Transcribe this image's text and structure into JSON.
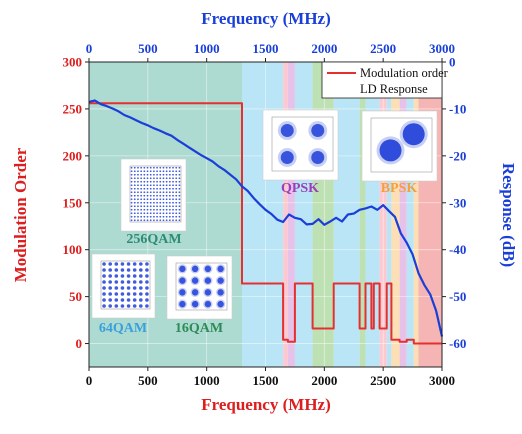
{
  "chart_data": {
    "type": "line",
    "top_axis_title": "Frequency (MHz)",
    "xlabel": "Frequency (MHz)",
    "ylabel_left": "Modulation Order",
    "ylabel_right": "Response (dB)",
    "xlim": [
      0,
      3000
    ],
    "ylim_left": [
      -25,
      300
    ],
    "ylim_right": [
      -65,
      0
    ],
    "x_ticks": [
      "0",
      "500",
      "1000",
      "1500",
      "2000",
      "2500",
      "3000"
    ],
    "x_tick_values": [
      0,
      500,
      1000,
      1500,
      2000,
      2500,
      3000
    ],
    "left_ticks": [
      "0",
      "50",
      "100",
      "150",
      "200",
      "250",
      "300"
    ],
    "left_tick_values": [
      0,
      50,
      100,
      150,
      200,
      250,
      300
    ],
    "right_ticks": [
      "0",
      "-10",
      "-20",
      "-30",
      "-40",
      "-50",
      "-60"
    ],
    "right_tick_values": [
      0,
      -10,
      -20,
      -30,
      -40,
      -50,
      -60
    ],
    "legend": [
      "Modulation order",
      "LD Response"
    ],
    "legend_position": "top-right",
    "colors": {
      "modulation": "#e53030",
      "response": "#1a3fd8",
      "left_axis": "#dc1e1e",
      "right_axis": "#1a3fd8",
      "top_axis": "#1a3fd8",
      "bottom_title": "#dc1e1e"
    },
    "bands": [
      {
        "from": 0,
        "to": 1300,
        "color": "#9fd3c9"
      },
      {
        "from": 1300,
        "to": 1650,
        "color": "#aee0f5"
      },
      {
        "from": 1650,
        "to": 1690,
        "color": "#fbc0c8"
      },
      {
        "from": 1690,
        "to": 1750,
        "color": "#e2b6e4"
      },
      {
        "from": 1750,
        "to": 1900,
        "color": "#aee0f5"
      },
      {
        "from": 1900,
        "to": 2080,
        "color": "#b3dca6"
      },
      {
        "from": 2080,
        "to": 2300,
        "color": "#aee0f5"
      },
      {
        "from": 2300,
        "to": 2350,
        "color": "#b3dca6"
      },
      {
        "from": 2350,
        "to": 2470,
        "color": "#aee0f5"
      },
      {
        "from": 2470,
        "to": 2530,
        "color": "#fbc0c8"
      },
      {
        "from": 2530,
        "to": 2570,
        "color": "#aee0f5"
      },
      {
        "from": 2570,
        "to": 2640,
        "color": "#fbd9a8"
      },
      {
        "from": 2640,
        "to": 2700,
        "color": "#e2b6e4"
      },
      {
        "from": 2700,
        "to": 2760,
        "color": "#aee0f5"
      },
      {
        "from": 2760,
        "to": 2800,
        "color": "#fbd9a8"
      },
      {
        "from": 2800,
        "to": 3000,
        "color": "#f4a8a8"
      }
    ],
    "series": [
      {
        "name": "Modulation order",
        "axis": "left",
        "step": true,
        "x": [
          0,
          1300,
          1300,
          1650,
          1650,
          1690,
          1690,
          1750,
          1750,
          1900,
          1900,
          2080,
          2080,
          2300,
          2300,
          2350,
          2350,
          2400,
          2400,
          2420,
          2420,
          2470,
          2470,
          2530,
          2530,
          2570,
          2570,
          2640,
          2640,
          2700,
          2700,
          2760,
          2760,
          3000
        ],
        "values": [
          256,
          256,
          64,
          64,
          4,
          4,
          2,
          2,
          64,
          64,
          16,
          16,
          64,
          64,
          16,
          16,
          64,
          64,
          16,
          16,
          64,
          64,
          16,
          16,
          64,
          64,
          4,
          4,
          2,
          2,
          4,
          4,
          0,
          0
        ]
      },
      {
        "name": "LD Response",
        "axis": "right",
        "x": [
          0,
          50,
          100,
          150,
          200,
          250,
          300,
          350,
          400,
          450,
          500,
          550,
          600,
          650,
          700,
          750,
          800,
          850,
          900,
          950,
          1000,
          1050,
          1100,
          1150,
          1200,
          1250,
          1300,
          1350,
          1400,
          1450,
          1500,
          1550,
          1600,
          1650,
          1700,
          1750,
          1800,
          1850,
          1900,
          1950,
          2000,
          2050,
          2100,
          2150,
          2200,
          2250,
          2300,
          2350,
          2400,
          2450,
          2500,
          2550,
          2600,
          2650,
          2700,
          2750,
          2800,
          2850,
          2900,
          2950,
          3000
        ],
        "values": [
          -8.5,
          -8.2,
          -9,
          -9.4,
          -9.9,
          -10.5,
          -11.3,
          -11.8,
          -12.4,
          -13,
          -13.5,
          -14.1,
          -14.6,
          -15.2,
          -15.7,
          -16.6,
          -17.4,
          -18.2,
          -19,
          -19.8,
          -20.5,
          -21.2,
          -22.2,
          -23,
          -24,
          -25,
          -26.5,
          -27.5,
          -29,
          -30.3,
          -31.5,
          -32.4,
          -33.6,
          -34.1,
          -32.5,
          -33.2,
          -33.5,
          -34.6,
          -34.5,
          -33.5,
          -34.7,
          -34,
          -33.2,
          -34,
          -32.5,
          -32.3,
          -31.5,
          -31.2,
          -30.8,
          -31.5,
          -30.5,
          -31.8,
          -33,
          -36.5,
          -38.5,
          -41,
          -45,
          -47.5,
          -49.5,
          -53,
          -58.5
        ]
      }
    ],
    "insets": [
      {
        "label": "256QAM",
        "label_color": "#2e8b74",
        "kind": "grid",
        "n": 16
      },
      {
        "label": "64QAM",
        "label_color": "#3aa0dc",
        "kind": "grid",
        "n": 8
      },
      {
        "label": "16QAM",
        "label_color": "#2e8b57",
        "kind": "grid",
        "n": 4
      },
      {
        "label": "QPSK",
        "label_color": "#9b3fb8",
        "kind": "grid",
        "n": 2
      },
      {
        "label": "BPSK",
        "label_color": "#f2a13c",
        "kind": "pair",
        "n": 2
      }
    ]
  }
}
